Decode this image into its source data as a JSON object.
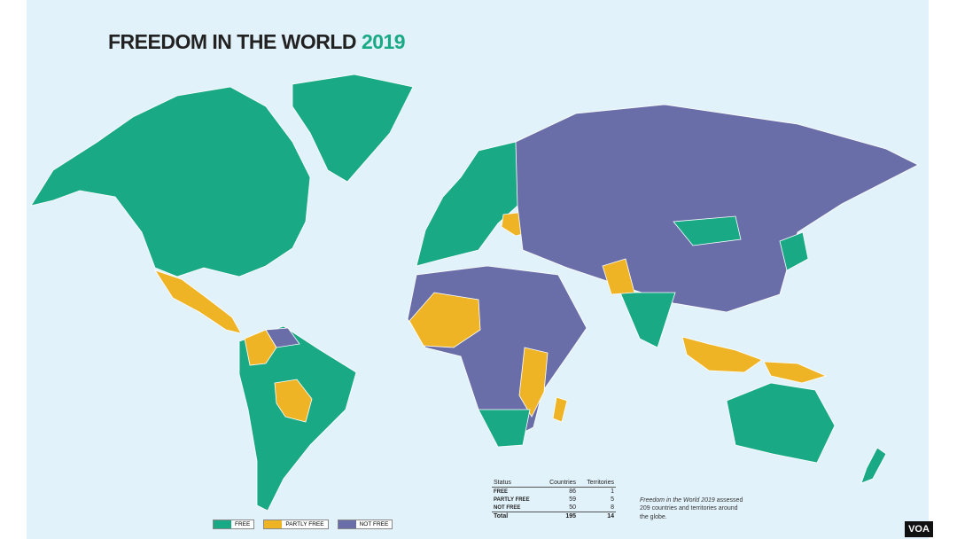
{
  "title": {
    "main": "FREEDOM IN THE WORLD",
    "year": "2019"
  },
  "legend": [
    {
      "label": "FREE",
      "color": "#1aa985"
    },
    {
      "label": "PARTLY FREE",
      "color": "#efb426"
    },
    {
      "label": "NOT FREE",
      "color": "#6a6ea8"
    }
  ],
  "table": {
    "header": [
      "Status",
      "Countries",
      "Territories"
    ],
    "rows": [
      [
        "FREE",
        "86",
        "1"
      ],
      [
        "PARTLY FREE",
        "59",
        "5"
      ],
      [
        "NOT FREE",
        "50",
        "8"
      ]
    ],
    "total": [
      "Total",
      "195",
      "14"
    ]
  },
  "note": {
    "italic": "Freedom in the World 2019",
    "text": " assessed 209 countries and territories around the globe."
  },
  "logo": "VOA"
}
